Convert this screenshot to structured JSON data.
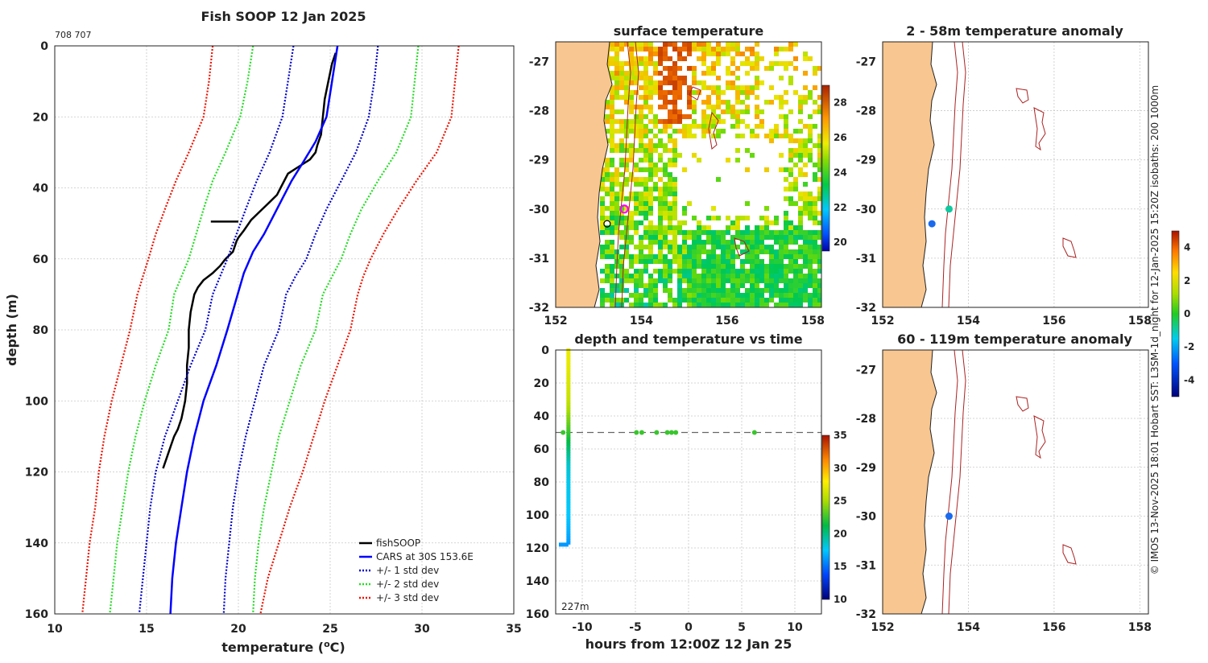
{
  "profile": {
    "title": "Fish SOOP 12 Jan 2025",
    "id_label": "708 707",
    "xlabel": "temperature (",
    "xlabel_sup": "o",
    "xlabel_end": "C)",
    "ylabel": "depth (m)",
    "xticks": [
      "10",
      "15",
      "20",
      "25",
      "30",
      "35"
    ],
    "yticks": [
      "0",
      "20",
      "40",
      "60",
      "80",
      "100",
      "120",
      "140",
      "160"
    ],
    "legend": [
      "fishSOOP",
      "CARS at 30S 153.6E",
      "+/- 1 std dev",
      "+/- 2 std dev",
      "+/- 3 std dev"
    ],
    "colors": {
      "fish": "#000000",
      "cars": "#0000ff",
      "std1": "#0000cc",
      "std2": "#22dd22",
      "std3": "#ee1100"
    }
  },
  "sst": {
    "title": "surface temperature",
    "xticks": [
      "152",
      "154",
      "156",
      "158"
    ],
    "yticks": [
      "-27",
      "-28",
      "-29",
      "-30",
      "-31",
      "-32"
    ],
    "colorbar_ticks": [
      "28",
      "26",
      "24",
      "22",
      "20"
    ]
  },
  "anom1": {
    "title": "2 - 58m temperature anomaly",
    "xticks": [
      "152",
      "154",
      "156",
      "158"
    ],
    "yticks": [
      "-27",
      "-28",
      "-29",
      "-30",
      "-31",
      "-32"
    ]
  },
  "anom2": {
    "title": "60 - 119m temperature anomaly",
    "xticks": [
      "152",
      "154",
      "156",
      "158"
    ],
    "yticks": [
      "-27",
      "-28",
      "-29",
      "-30",
      "-31",
      "-32"
    ]
  },
  "anom_colorbar_ticks": [
    "4",
    "2",
    "0",
    "-2",
    "-4"
  ],
  "timeplot": {
    "title": "depth and temperature vs time",
    "xlabel": "hours from 12:00Z 12 Jan 25",
    "xticks": [
      "-10",
      "-5",
      "0",
      "5",
      "10"
    ],
    "yticks": [
      "0",
      "20",
      "40",
      "60",
      "80",
      "100",
      "120",
      "140",
      "160"
    ],
    "colorbar_ticks": [
      "35",
      "30",
      "25",
      "20",
      "15",
      "10"
    ],
    "depth_label": "227m"
  },
  "credit": "© IMOS 13-Nov-2025 18:01 Hobart SST: L3SM-1d_night for 12-Jan-2025 15:20Z isobaths: 200  1000m",
  "chart_data": [
    {
      "type": "line",
      "title": "Fish SOOP 12 Jan 2025",
      "xlabel": "temperature (oC)",
      "ylabel": "depth (m)",
      "xlim": [
        10,
        35
      ],
      "ylim": [
        160,
        0
      ],
      "series": [
        {
          "name": "fishSOOP",
          "x": [
            25.3,
            25.1,
            24.9,
            24.7,
            24.6,
            24.5,
            24.3,
            24.2,
            23.9,
            23.3,
            22.7,
            22.3,
            22.1,
            21.7,
            21.1,
            20.7,
            20.3,
            20.0,
            19.9,
            19.7,
            19.3,
            19.0,
            18.6,
            18.1,
            17.8,
            17.6,
            17.4,
            17.3,
            17.3,
            17.2,
            17.2,
            17.1,
            16.9,
            16.7,
            16.5,
            16.3,
            16.1,
            15.9
          ],
          "y": [
            2,
            5,
            10,
            15,
            20,
            25,
            28,
            30,
            32,
            34,
            36,
            40,
            42,
            44,
            47,
            49,
            52,
            54,
            55,
            58,
            60,
            62,
            64,
            66,
            68,
            70,
            75,
            80,
            85,
            90,
            95,
            100,
            105,
            108,
            110,
            113,
            116,
            119
          ]
        },
        {
          "name": "fishSOOP spike",
          "x": [
            18.5,
            20.0
          ],
          "y": [
            49.5,
            49.5
          ]
        },
        {
          "name": "CARS at 30S 153.6E",
          "x": [
            25.4,
            25.1,
            24.8,
            24.2,
            23.5,
            22.9,
            22.4,
            21.9,
            21.4,
            20.8,
            20.3,
            19.4,
            18.8,
            18.1,
            17.6,
            17.2,
            16.9,
            16.6,
            16.4,
            16.3
          ],
          "y": [
            0,
            10,
            20,
            27,
            33,
            38,
            43,
            48,
            53,
            58,
            64,
            80,
            90,
            100,
            110,
            120,
            130,
            140,
            150,
            160
          ]
        },
        {
          "name": "+/- 1 std dev (upper)",
          "x": [
            27.6,
            27.4,
            27.1,
            26.4,
            25.6,
            24.8,
            24.2,
            23.7,
            23.1,
            22.6,
            22.2,
            21.4,
            20.9,
            20.4,
            20.0,
            19.7,
            19.5,
            19.3,
            19.2
          ],
          "y": [
            0,
            10,
            20,
            30,
            38,
            46,
            53,
            60,
            65,
            70,
            80,
            90,
            100,
            110,
            120,
            130,
            140,
            150,
            160
          ]
        },
        {
          "name": "+/- 1 std dev (lower)",
          "x": [
            23.0,
            22.7,
            22.4,
            21.7,
            21.0,
            20.4,
            19.9,
            19.4,
            19.0,
            18.6,
            18.2,
            17.4,
            16.7,
            16.0,
            15.5,
            15.2,
            15.0,
            14.8,
            14.6
          ],
          "y": [
            0,
            10,
            20,
            30,
            38,
            46,
            53,
            60,
            65,
            70,
            80,
            90,
            100,
            110,
            120,
            130,
            140,
            150,
            160
          ]
        },
        {
          "name": "+/- 2 std dev (upper)",
          "x": [
            29.8,
            29.6,
            29.4,
            28.6,
            27.6,
            26.7,
            26.1,
            25.6,
            25.1,
            24.6,
            24.2,
            23.4,
            22.8,
            22.2,
            21.8,
            21.4,
            21.1,
            20.9,
            20.8
          ],
          "y": [
            0,
            10,
            20,
            30,
            38,
            46,
            53,
            60,
            65,
            70,
            80,
            90,
            100,
            110,
            120,
            130,
            140,
            150,
            160
          ]
        },
        {
          "name": "+/- 2 std dev (lower)",
          "x": [
            20.8,
            20.5,
            20.1,
            19.3,
            18.6,
            18.1,
            17.7,
            17.3,
            16.9,
            16.5,
            16.2,
            15.5,
            14.9,
            14.4,
            14.0,
            13.7,
            13.4,
            13.2,
            13.0
          ],
          "y": [
            0,
            10,
            20,
            30,
            38,
            46,
            53,
            60,
            65,
            70,
            80,
            90,
            100,
            110,
            120,
            130,
            140,
            150,
            160
          ]
        },
        {
          "name": "+/- 3 std dev (upper)",
          "x": [
            32.0,
            31.8,
            31.6,
            30.8,
            29.7,
            28.7,
            27.9,
            27.2,
            26.8,
            26.5,
            26.1,
            25.4,
            24.7,
            24.1,
            23.5,
            22.8,
            22.2,
            21.6,
            21.2
          ],
          "y": [
            0,
            10,
            20,
            30,
            38,
            46,
            53,
            60,
            65,
            70,
            80,
            90,
            100,
            110,
            120,
            130,
            140,
            150,
            160
          ]
        },
        {
          "name": "+/- 3 std dev (lower)",
          "x": [
            18.6,
            18.4,
            18.1,
            17.3,
            16.6,
            16.0,
            15.5,
            15.1,
            14.8,
            14.5,
            14.1,
            13.6,
            13.1,
            12.7,
            12.4,
            12.2,
            11.9,
            11.7,
            11.5
          ],
          "y": [
            0,
            10,
            20,
            30,
            38,
            46,
            53,
            60,
            65,
            70,
            80,
            90,
            100,
            110,
            120,
            130,
            140,
            150,
            160
          ]
        }
      ]
    },
    {
      "type": "heatmap",
      "title": "surface temperature",
      "xlim": [
        152,
        158.2
      ],
      "ylim": [
        -32,
        -26.6
      ],
      "colorbar": {
        "min": 19.5,
        "max": 29
      },
      "markers": [
        {
          "lon": 153.6,
          "lat": -30.0,
          "style": "magenta-ring"
        },
        {
          "lon": 153.2,
          "lat": -30.3,
          "style": "black-ring"
        }
      ]
    },
    {
      "type": "scatter",
      "title": "2 - 58m temperature anomaly",
      "xlim": [
        152,
        158.2
      ],
      "ylim": [
        -32,
        -26.6
      ],
      "points": [
        {
          "lon": 153.55,
          "lat": -30.0,
          "anomaly": -1.0
        },
        {
          "lon": 153.15,
          "lat": -30.3,
          "anomaly": -2.5
        }
      ]
    },
    {
      "type": "scatter",
      "title": "60 - 119m temperature anomaly",
      "xlim": [
        152,
        158.2
      ],
      "ylim": [
        -32,
        -26.6
      ],
      "points": [
        {
          "lon": 153.55,
          "lat": -30.0,
          "anomaly": -3.0
        }
      ]
    },
    {
      "type": "scatter",
      "title": "depth and temperature vs time",
      "xlabel": "hours from 12:00Z 12 Jan 25",
      "ylabel": "",
      "xlim": [
        -12.5,
        12.5
      ],
      "ylim": [
        160,
        0
      ],
      "reference_depth": 50,
      "colorbar": {
        "min": 10,
        "max": 35
      },
      "cast": {
        "hour": -11.3,
        "depths": [
          0,
          10,
          20,
          30,
          40,
          50,
          60,
          70,
          80,
          90,
          100,
          110,
          118
        ],
        "temps": [
          25.3,
          25.1,
          24.6,
          24.0,
          22.5,
          21.0,
          19.3,
          17.8,
          17.3,
          17.2,
          17.0,
          16.5,
          15.9
        ]
      },
      "bottom_segment": {
        "hours": [
          -12.2,
          -11.3
        ],
        "depth": 118,
        "temp": 15.9
      },
      "points": [
        {
          "hour": -11.8,
          "depth": 50,
          "temp": 21
        },
        {
          "hour": -4.9,
          "depth": 50,
          "temp": 21
        },
        {
          "hour": -4.4,
          "depth": 50,
          "temp": 21
        },
        {
          "hour": -3.0,
          "depth": 50,
          "temp": 21
        },
        {
          "hour": -2.0,
          "depth": 50,
          "temp": 21
        },
        {
          "hour": -1.6,
          "depth": 50,
          "temp": 21
        },
        {
          "hour": -1.2,
          "depth": 50,
          "temp": 21
        },
        {
          "hour": 6.2,
          "depth": 50,
          "temp": 21
        }
      ]
    }
  ]
}
